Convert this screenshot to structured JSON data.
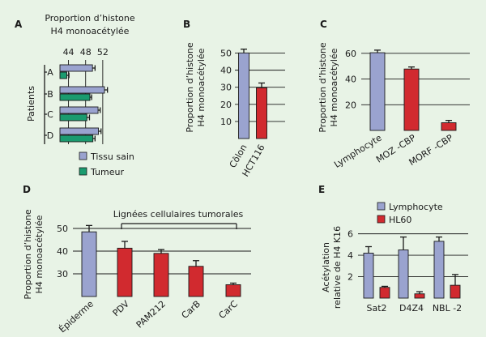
{
  "colors": {
    "background": "#e8f3e6",
    "healthy": "#9aa3cf",
    "tumor": "#1a9b6f",
    "red": "#d12a2f",
    "lymphocyte": "#9aa3cf",
    "hl60": "#d12a2f"
  },
  "chart_data": [
    {
      "panel": "A",
      "type": "bar",
      "orientation": "horizontal",
      "title": "Proportion d’histone H4 monoacétylée",
      "title_lines": [
        "Proportion d’histone",
        "H4 monoacétylée"
      ],
      "ylabel": "Patients",
      "categories": [
        "A",
        "B",
        "C",
        "D"
      ],
      "xticks": [
        "44",
        "48",
        "52"
      ],
      "xlim": [
        42,
        56
      ],
      "series": [
        {
          "name": "Tissu sain",
          "values": [
            49.6,
            52.4,
            50.9,
            51.0
          ],
          "errors": [
            0.6,
            0.7,
            0.5,
            0.6
          ]
        },
        {
          "name": "Tumeur",
          "values": [
            43.6,
            49.0,
            48.3,
            49.7
          ],
          "errors": [
            0.5,
            0.4,
            0.6,
            0.5
          ]
        }
      ],
      "legend": [
        "Tissu sain",
        "Tumeur"
      ]
    },
    {
      "panel": "B",
      "type": "bar",
      "ylabel_lines": [
        "Proportion d’histone",
        "H4 monoacétylée"
      ],
      "categories": [
        "Côlon",
        "HCT116"
      ],
      "values": [
        50.1,
        29.7
      ],
      "errors": [
        2.2,
        2.8
      ],
      "yticks": [
        "10",
        "20",
        "30",
        "40",
        "50"
      ],
      "ylim": [
        0,
        55
      ]
    },
    {
      "panel": "C",
      "type": "bar",
      "ylabel_lines": [
        "Proportion d’histone",
        "H4 monoacétylée"
      ],
      "categories": [
        "Lymphocyte",
        "MOZ -CBP",
        "MORF -CBP"
      ],
      "values": [
        60.5,
        47.8,
        6.0
      ],
      "errors": [
        2.0,
        1.6,
        1.8
      ],
      "yticks": [
        "20",
        "40",
        "60"
      ],
      "ylim": [
        0,
        70
      ]
    },
    {
      "panel": "D",
      "type": "bar",
      "ylabel_lines": [
        "Proportion d’histone",
        "H4 monoacétylée"
      ],
      "categories": [
        "Épiderme",
        "PDV",
        "PAM212",
        "CarB",
        "CarC"
      ],
      "values": [
        48.5,
        41.3,
        39.0,
        33.3,
        25.2
      ],
      "errors": [
        2.8,
        3.0,
        1.7,
        2.5,
        0.7
      ],
      "yticks": [
        "30",
        "40",
        "50"
      ],
      "ylim": [
        20,
        55
      ],
      "annotation": "Lignées cellulaires tumorales"
    },
    {
      "panel": "E",
      "type": "bar",
      "ylabel_lines": [
        "Acétylation",
        "relative de H4 K16"
      ],
      "categories": [
        "Sat2",
        "D4Z4",
        "NBL -2"
      ],
      "series": [
        {
          "name": "Lymphocyte",
          "values": [
            4.2,
            4.5,
            5.3
          ],
          "errors": [
            0.6,
            1.2,
            0.4
          ]
        },
        {
          "name": "HL60",
          "values": [
            1.0,
            0.4,
            1.2
          ],
          "errors": [
            0.1,
            0.2,
            1.0
          ]
        }
      ],
      "yticks": [
        "2",
        "4",
        "6"
      ],
      "ylim": [
        0,
        6.5
      ],
      "legend": [
        "Lymphocyte",
        "HL60"
      ]
    }
  ]
}
